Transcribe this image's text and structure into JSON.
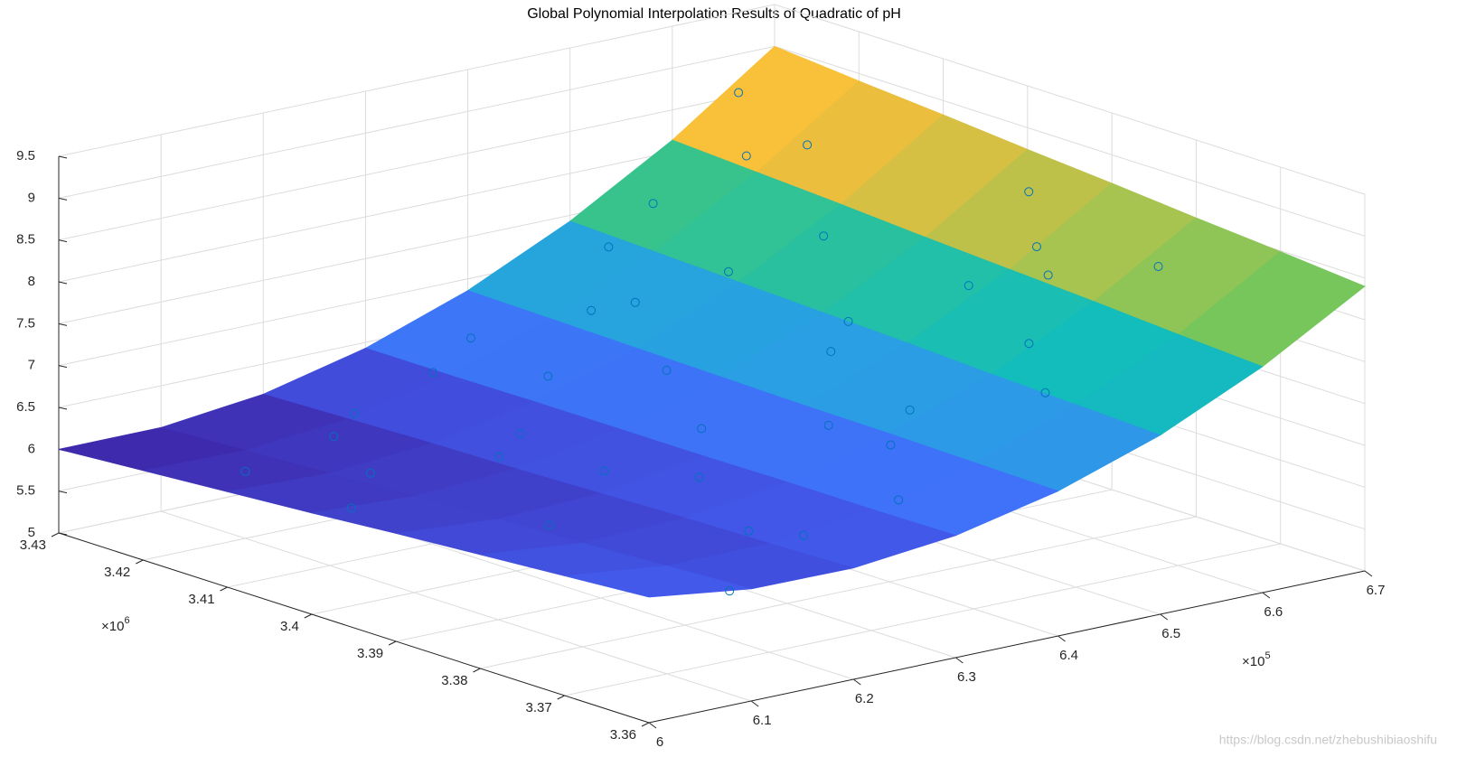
{
  "chart_data": {
    "type": "surface3d",
    "title": "Global Polynomial Interpolation Results of Quadratic of pH",
    "xlim": [
      6,
      6.7
    ],
    "ylim": [
      3.36,
      3.43
    ],
    "zlim": [
      5,
      9.5
    ],
    "xticks": [
      6,
      6.1,
      6.2,
      6.3,
      6.4,
      6.5,
      6.6,
      6.7
    ],
    "yticks": [
      3.36,
      3.37,
      3.38,
      3.39,
      3.4,
      3.41,
      3.42,
      3.43
    ],
    "zticks": [
      5,
      5.5,
      6,
      6.5,
      7,
      7.5,
      8,
      8.5,
      9,
      9.5
    ],
    "x_multiplier": {
      "base": "×10",
      "exponent": "5"
    },
    "y_multiplier": {
      "base": "×10",
      "exponent": "6"
    },
    "grid": true,
    "colormap": [
      "#3e26a8",
      "#4367fd",
      "#2c9ce6",
      "#12bdbb",
      "#5cc863",
      "#f9bd3b",
      "#f9fb15"
    ],
    "clim": [
      6,
      9
    ],
    "surface": {
      "x": [
        6,
        6.1,
        6.2,
        6.3,
        6.4,
        6.5,
        6.6,
        6.7
      ],
      "y": [
        3.36,
        3.37,
        3.38,
        3.39,
        3.4,
        3.41,
        3.42,
        3.43
      ],
      "z": [
        [
          6.5,
          6.34,
          6.33,
          6.46,
          6.73,
          7.14,
          7.7,
          8.4
        ],
        [
          6.43,
          6.29,
          6.3,
          6.45,
          6.75,
          7.18,
          7.76,
          8.49
        ],
        [
          6.36,
          6.24,
          6.28,
          6.45,
          6.77,
          7.22,
          7.83,
          8.57
        ],
        [
          6.29,
          6.2,
          6.25,
          6.44,
          6.78,
          7.27,
          7.89,
          8.66
        ],
        [
          6.21,
          6.15,
          6.22,
          6.44,
          6.8,
          7.31,
          7.95,
          8.74
        ],
        [
          6.14,
          6.1,
          6.2,
          6.44,
          6.82,
          7.35,
          8.02,
          8.83
        ],
        [
          6.07,
          6.05,
          6.17,
          6.43,
          6.84,
          7.39,
          8.08,
          8.91
        ],
        [
          6,
          6,
          6.14,
          6.43,
          6.86,
          7.43,
          8.14,
          9
        ]
      ]
    },
    "scatter": {
      "color": "#0072bd",
      "x": [
        6.12,
        6.18,
        6.25,
        6.31,
        6.36,
        6.42,
        6.47,
        6.52,
        6.58,
        6.63,
        6.15,
        6.22,
        6.28,
        6.34,
        6.39,
        6.45,
        6.5,
        6.56,
        6.61,
        6.66,
        6.08,
        6.14,
        6.2,
        6.27,
        6.33,
        6.38,
        6.44,
        6.49,
        6.55,
        6.6,
        6.1,
        6.17,
        6.24,
        6.3,
        6.37,
        6.43,
        6.48,
        6.54,
        6.59,
        6.64
      ],
      "y": [
        3.365,
        3.37,
        3.372,
        3.368,
        3.375,
        3.38,
        3.37,
        3.378,
        3.383,
        3.376,
        3.39,
        3.392,
        3.388,
        3.395,
        3.386,
        3.393,
        3.397,
        3.39,
        3.388,
        3.395,
        3.405,
        3.41,
        3.402,
        3.408,
        3.412,
        3.404,
        3.415,
        3.41,
        3.406,
        3.414,
        3.42,
        3.418,
        3.424,
        3.422,
        3.426,
        3.419,
        3.423,
        3.425,
        3.42,
        3.427
      ],
      "z": [
        6.1,
        6.5,
        6.2,
        6.6,
        6.9,
        7,
        7.4,
        7.6,
        8.1,
        8.3,
        6,
        6.4,
        6.3,
        6.5,
        6.7,
        7.2,
        7.3,
        7.8,
        8.2,
        8.5,
        5.9,
        6,
        6.3,
        6.2,
        6.6,
        6.8,
        7.1,
        7.5,
        7.9,
        8.6,
        5.8,
        6.1,
        6,
        6.4,
        6.5,
        6.9,
        7.4,
        7.7,
        8.3,
        8.7
      ]
    },
    "watermark": "https://blog.csdn.net/zhebushibiaoshifu"
  }
}
